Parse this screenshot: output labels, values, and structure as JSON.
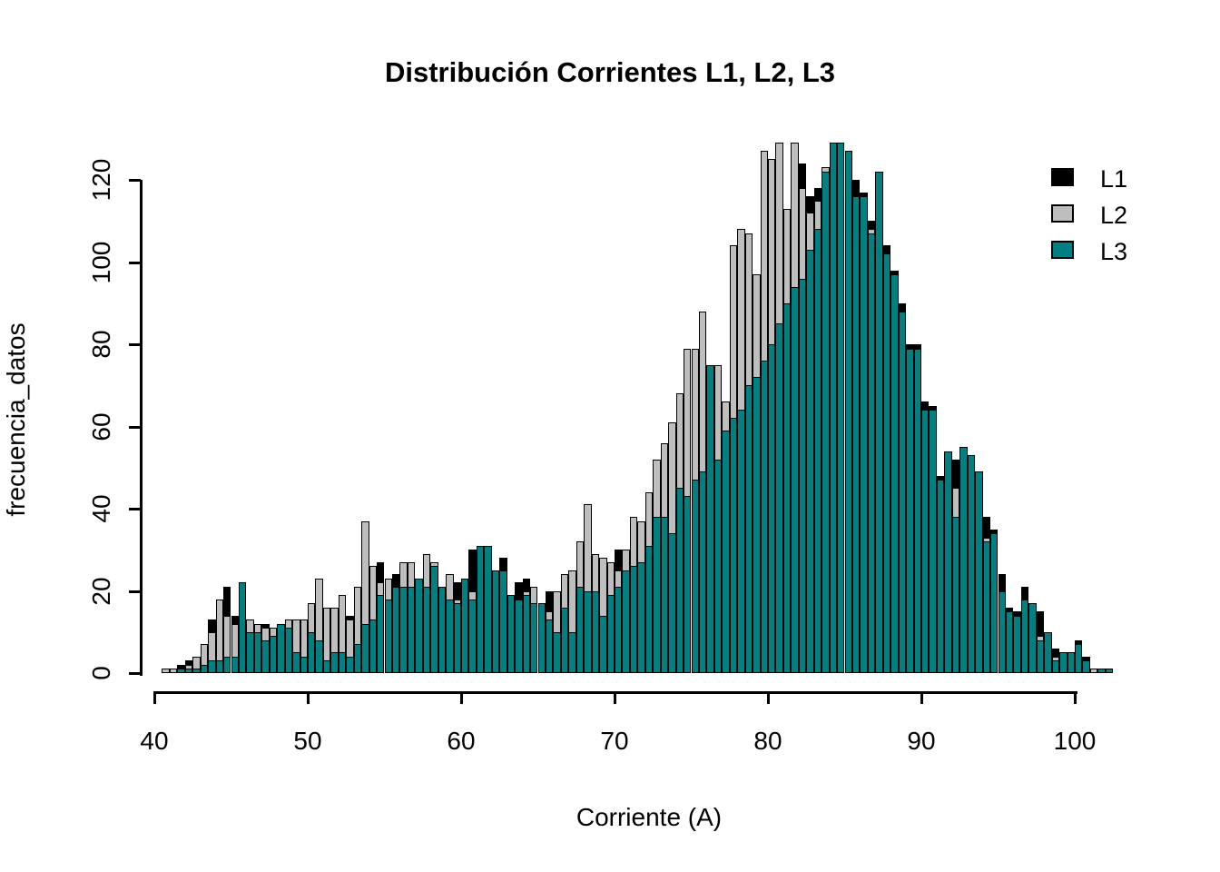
{
  "title": "Distribución Corrientes L1, L2, L3",
  "x_axis": {
    "label": "Corriente (A)",
    "ticks": [
      40,
      50,
      60,
      70,
      80,
      90,
      100
    ]
  },
  "y_axis": {
    "label": "frecuencia_datos",
    "ticks": [
      0,
      20,
      40,
      60,
      80,
      100,
      120
    ]
  },
  "legend": {
    "entries": [
      {
        "label": "L1",
        "color": "#000000"
      },
      {
        "label": "L2",
        "color": "#BEBEBE"
      },
      {
        "label": "L3",
        "color": "#008080"
      }
    ]
  },
  "chart_data": {
    "type": "bar",
    "subtype": "overlaid-histograms",
    "title": "Distribución Corrientes L1, L2, L3",
    "xlabel": "Corriente (A)",
    "ylabel": "frecuencia_datos",
    "xlim": [
      40,
      102.5
    ],
    "ylim": [
      0,
      130
    ],
    "grid": false,
    "legend_position": "top-right",
    "bin_start": 40.5,
    "bin_width": 0.5,
    "series": [
      {
        "name": "L1",
        "color": "#000000",
        "values": [
          1,
          1,
          2,
          3,
          4,
          6,
          13,
          15,
          21,
          14,
          21,
          11,
          12,
          12,
          10,
          12,
          12,
          12,
          9,
          10,
          12,
          8,
          10,
          12,
          14,
          15,
          19,
          20,
          27,
          22,
          24,
          25,
          22,
          23,
          22,
          26,
          21,
          20,
          22,
          23,
          30,
          31,
          30,
          24,
          28,
          19,
          22,
          23,
          17,
          17,
          20,
          16,
          18,
          20,
          24,
          26,
          24,
          28,
          26,
          30,
          30,
          32,
          35,
          40,
          49,
          52,
          57,
          64,
          49,
          60,
          62,
          66,
          62,
          60,
          72,
          80,
          88,
          92,
          100,
          105,
          110,
          113,
          118,
          124,
          116,
          118,
          122,
          125,
          126,
          124,
          120,
          117,
          110,
          118,
          104,
          98,
          90,
          80,
          80,
          66,
          65,
          48,
          54,
          52,
          55,
          53,
          49,
          38,
          35,
          24,
          16,
          15,
          21,
          15,
          15,
          10,
          6,
          5,
          5,
          8,
          4,
          1,
          1,
          1
        ]
      },
      {
        "name": "L2",
        "color": "#BEBEBE",
        "values": [
          1,
          1,
          1,
          2,
          4,
          7,
          10,
          18,
          14,
          12,
          13,
          13,
          12,
          11,
          11,
          10,
          13,
          13,
          13,
          17,
          23,
          16,
          16,
          19,
          13,
          21,
          37,
          26,
          22,
          23,
          21,
          27,
          27,
          20,
          29,
          27,
          19,
          24,
          18,
          20,
          20,
          25,
          24,
          22,
          25,
          18,
          18,
          20,
          21,
          16,
          15,
          20,
          24,
          25,
          32,
          41,
          29,
          28,
          27,
          25,
          30,
          38,
          37,
          44,
          52,
          56,
          61,
          68,
          79,
          79,
          88,
          64,
          75,
          66,
          104,
          108,
          107,
          97,
          127,
          125,
          129,
          113,
          129,
          118,
          112,
          115,
          123,
          120,
          121,
          119,
          115,
          112,
          108,
          112,
          100,
          95,
          87,
          78,
          76,
          63,
          62,
          46,
          50,
          45,
          50,
          48,
          44,
          33,
          30,
          20,
          14,
          13,
          12,
          10,
          9,
          8,
          4,
          4,
          3,
          5,
          2,
          1,
          1,
          0
        ]
      },
      {
        "name": "L3",
        "color": "#008080",
        "values": [
          0,
          0,
          1,
          1,
          1,
          2,
          3,
          3,
          4,
          4,
          22,
          10,
          10,
          8,
          9,
          12,
          11,
          5,
          4,
          10,
          8,
          3,
          5,
          5,
          4,
          7,
          12,
          13,
          19,
          18,
          21,
          21,
          21,
          23,
          21,
          26,
          21,
          18,
          17,
          23,
          18,
          31,
          31,
          25,
          25,
          19,
          18,
          19,
          17,
          17,
          13,
          10,
          16,
          10,
          21,
          20,
          20,
          14,
          19,
          21,
          25,
          26,
          27,
          31,
          38,
          38,
          34,
          45,
          43,
          47,
          49,
          75,
          52,
          59,
          62,
          64,
          70,
          72,
          76,
          80,
          85,
          90,
          94,
          96,
          103,
          108,
          122,
          129,
          129,
          127,
          116,
          116,
          107,
          122,
          102,
          97,
          88,
          79,
          79,
          64,
          64,
          47,
          54,
          38,
          55,
          53,
          49,
          32,
          34,
          20,
          15,
          14,
          18,
          17,
          8,
          10,
          3,
          5,
          5,
          7,
          3,
          0,
          1,
          1
        ]
      }
    ]
  }
}
